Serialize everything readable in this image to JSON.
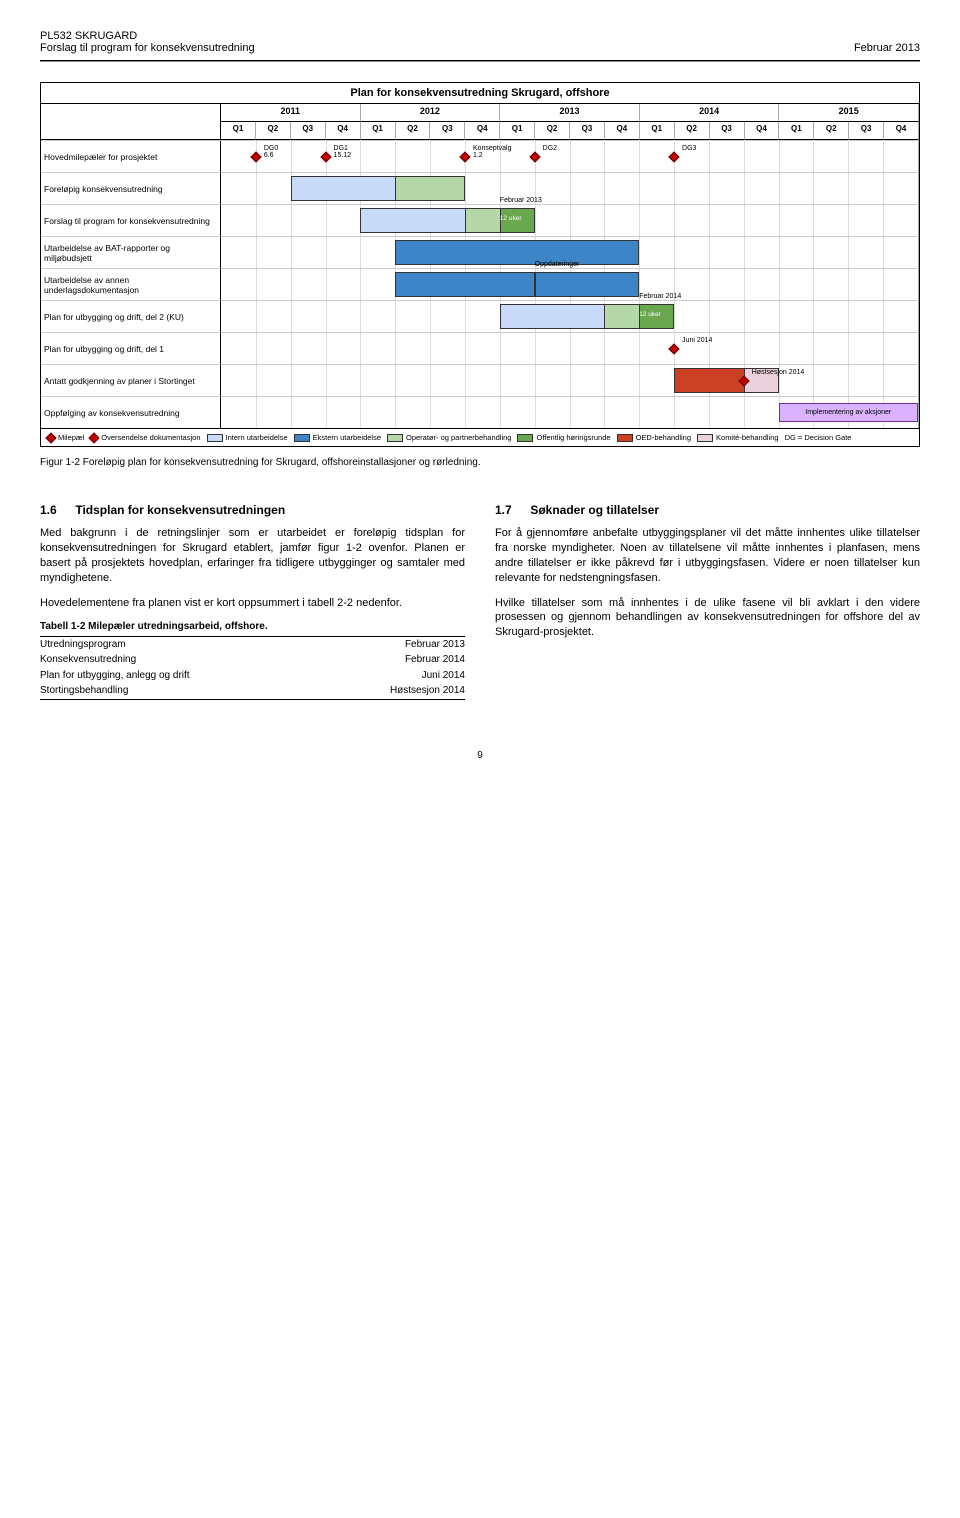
{
  "header": {
    "title": "PL532 SKRUGARD",
    "subtitle": "Forslag til program for konsekvensutredning",
    "date": "Februar 2013"
  },
  "gantt": {
    "title": "Plan for konsekvensutredning Skrugard, offshore",
    "years": [
      "2011",
      "2012",
      "2013",
      "2014",
      "2015"
    ],
    "quarters": [
      "Q1",
      "Q2",
      "Q3",
      "Q4"
    ],
    "colors": {
      "intern": "#c9daf8",
      "ekstern": "#3d85c6",
      "operator": "#b6d7a8",
      "offentlig": "#6aa84f",
      "oed": "#cc4125",
      "komite": "#ead1dc",
      "milestone": "#c00000",
      "border": "#333333",
      "grid": "#cccccc",
      "impl_bg": "#d9b3ff"
    },
    "rows": [
      {
        "label": "Hovedmilepæler for prosjektet",
        "milestones": [
          {
            "col": 2,
            "text": "DG0\n6.6"
          },
          {
            "col": 4,
            "text": "DG1\n15.12"
          },
          {
            "col": 8,
            "text": "Konseptvalg\n1.2"
          },
          {
            "col": 10,
            "text": "DG2"
          },
          {
            "col": 14,
            "text": "DG3"
          }
        ]
      },
      {
        "label": "Foreløpig konsekvensutredning",
        "bars": [
          {
            "from": 3,
            "to": 6,
            "color": "intern"
          },
          {
            "from": 6,
            "to": 7,
            "color": "operator"
          }
        ]
      },
      {
        "label": "Forslag til program for konsekvensutredning",
        "bars": [
          {
            "from": 5,
            "to": 8,
            "color": "intern"
          },
          {
            "from": 8,
            "to": 9,
            "color": "operator"
          },
          {
            "from": 9,
            "to": 9,
            "color": "offentlig",
            "ann_above": "Februar 2013",
            "ann_in": "12 uker"
          }
        ]
      },
      {
        "label": "Utarbeidelse av BAT-rapporter og miljøbudsjett",
        "bars": [
          {
            "from": 6,
            "to": 12,
            "color": "ekstern"
          }
        ]
      },
      {
        "label": "Utarbeidelse av annen underlagsdokumentasjon",
        "bars": [
          {
            "from": 6,
            "to": 9,
            "color": "ekstern"
          },
          {
            "from": 10,
            "to": 12,
            "color": "ekstern",
            "ann_above": "Oppdateringer"
          }
        ]
      },
      {
        "label": "Plan for utbygging og drift, del 2 (KU)",
        "bars": [
          {
            "from": 9,
            "to": 12,
            "color": "intern"
          },
          {
            "from": 12,
            "to": 13,
            "color": "operator"
          },
          {
            "from": 13,
            "to": 13,
            "color": "offentlig",
            "ann_above": "Februar 2014",
            "ann_in": "12 uker"
          }
        ]
      },
      {
        "label": "Plan for utbygging og drift, del 1",
        "bars": [],
        "milestones": [
          {
            "col": 14,
            "text": "Juni 2014"
          }
        ]
      },
      {
        "label": "Antatt godkjenning av planer i Stortinget",
        "bars": [
          {
            "from": 14,
            "to": 16,
            "color": "oed"
          },
          {
            "from": 16,
            "to": 16,
            "color": "komite"
          }
        ],
        "milestones": [
          {
            "col": 16,
            "text": "Høstsesjon 2014"
          }
        ]
      },
      {
        "label": "Oppfølging av konsekvensutredning",
        "impl": {
          "from": 17,
          "to": 20,
          "text": "Implementering av aksjoner"
        }
      }
    ],
    "legend": [
      {
        "type": "diamond",
        "label": "Milepæl"
      },
      {
        "type": "diamond",
        "label": "Oversendelse dokumentasjon"
      },
      {
        "type": "swatch",
        "color": "intern",
        "label": "Intern utarbeidelse"
      },
      {
        "type": "swatch",
        "color": "ekstern",
        "label": "Ekstern utarbeidelse"
      },
      {
        "type": "swatch",
        "color": "operator",
        "label": "Operatør- og partnerbehandling"
      },
      {
        "type": "swatch",
        "color": "offentlig",
        "label": "Offentlig høringsrunde"
      },
      {
        "type": "swatch",
        "color": "oed",
        "label": "OED-behandling"
      },
      {
        "type": "swatch",
        "color": "komite",
        "label": "Komité-behandling"
      },
      {
        "type": "text",
        "label": "DG = Decision Gate"
      }
    ]
  },
  "fig_caption": "Figur 1-2 Foreløpig plan for konsekvensutredning for Skrugard, offshoreinstallasjoner og rørledning.",
  "section_1_6": {
    "num": "1.6",
    "title": "Tidsplan for konsekvensutredningen",
    "p1": "Med bakgrunn i de retningslinjer som er utarbeidet er foreløpig tidsplan for konsekvensutredningen for Skrugard etablert, jamfør figur 1-2 ovenfor. Planen er basert på prosjektets hovedplan, erfaringer fra tidligere utbygginger og samtaler med myndighetene.",
    "p2": "Hovedelementene fra planen vist er kort oppsummert i tabell 2-2 nedenfor.",
    "table_caption": "Tabell 1-2 Milepæler utredningsarbeid, offshore.",
    "table_rows": [
      {
        "k": "Utredningsprogram",
        "v": "Februar 2013"
      },
      {
        "k": "Konsekvensutredning",
        "v": "Februar 2014"
      },
      {
        "k": "Plan for utbygging, anlegg og drift",
        "v": "Juni 2014"
      },
      {
        "k": "Stortingsbehandling",
        "v": "Høstsesjon 2014"
      }
    ]
  },
  "section_1_7": {
    "num": "1.7",
    "title": "Søknader og tillatelser",
    "p1": "For å gjennomføre anbefalte utbyggingsplaner vil det måtte innhentes ulike tillatelser fra norske myndigheter. Noen av tillatelsene vil måtte innhentes i planfasen, mens andre tillatelser er ikke påkrevd før i utbyggingsfasen. Videre er noen tillatelser kun relevante for nedstengningsfasen.",
    "p2": "Hvilke tillatelser som må innhentes i de ulike fasene vil bli avklart i den videre prosessen og gjennom behandlingen av konsekvensutredningen for offshore del av Skrugard-prosjektet."
  },
  "page_number": "9"
}
